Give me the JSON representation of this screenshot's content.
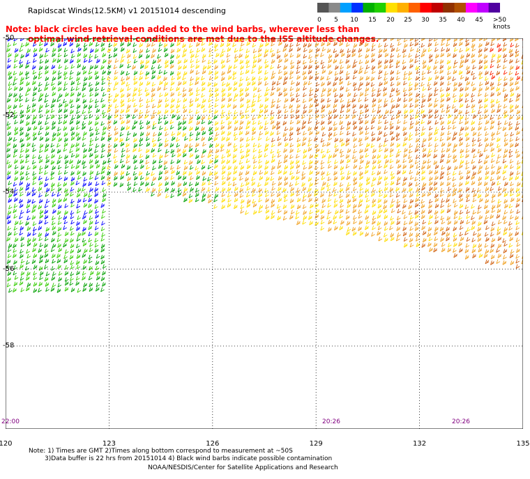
{
  "title": "Rapidscat Winds(12.5KM) v1 20151014 descending",
  "note_line1": "Note: black circles have been added to the wind barbs, wherever less than",
  "note_line2": "optimal wind retrieval conditions are met due to the ISS altitude changes.",
  "colorbar": {
    "labels": [
      "0",
      "5",
      "10",
      "15",
      "20",
      "25",
      "30",
      "35",
      "40",
      "45",
      ">50 knots"
    ],
    "colors": [
      "#555555",
      "#8a8a8a",
      "#00a0ff",
      "#0030ff",
      "#00b000",
      "#20d000",
      "#ffe000",
      "#ffb000",
      "#ff6000",
      "#ff0000",
      "#c00000",
      "#903000",
      "#b05000",
      "#ff00ff",
      "#c000ff",
      "#5000a0"
    ]
  },
  "axes": {
    "x_ticks": [
      "120",
      "123",
      "126",
      "129",
      "132",
      "135"
    ],
    "y_ticks": [
      "-50",
      "-52",
      "-54",
      "-56",
      "-58"
    ]
  },
  "times": [
    "22:00",
    "20:26",
    "20:26"
  ],
  "footer": {
    "line1": "Note: 1) Times are GMT 2)Times along bottom correspond to measurement at ~50S",
    "line2": "3)Data buffer is 22 hrs from 20151014 4) Black wind barbs indicate possible contamination",
    "line3": "NOAA/NESDIS/Center for Satellite Applications and Research"
  },
  "colors": {
    "blue": "#0000ff",
    "green": "#00a000",
    "light_green": "#33cc00",
    "yellow": "#ffdd00",
    "orange": "#f0a020",
    "dark_orange": "#d06010",
    "red": "#ff2000"
  }
}
